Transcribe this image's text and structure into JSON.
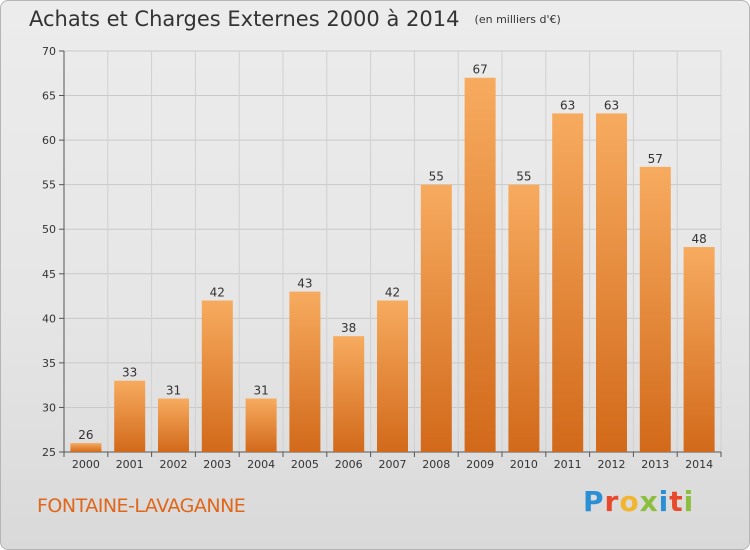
{
  "chart_data": {
    "type": "bar",
    "title": "Achats et Charges Externes 2000 à 2014",
    "subtitle": "(en milliers d'€)",
    "categories": [
      "2000",
      "2001",
      "2002",
      "2003",
      "2004",
      "2005",
      "2006",
      "2007",
      "2008",
      "2009",
      "2010",
      "2011",
      "2012",
      "2013",
      "2014"
    ],
    "values": [
      26,
      33,
      31,
      42,
      31,
      43,
      38,
      42,
      55,
      67,
      55,
      63,
      63,
      57,
      48
    ],
    "ylim": [
      25,
      70
    ],
    "yticks": [
      25,
      30,
      35,
      40,
      45,
      50,
      55,
      60,
      65,
      70
    ],
    "grid": true,
    "bar_color": "#f08a2e",
    "bar_color_light": "#f6a95c"
  },
  "commune": "FONTAINE-LAVAGANNE",
  "logo": {
    "text": "Proxiti",
    "colors": [
      "#2b8fd6",
      "#e8482c",
      "#f2b52f",
      "#8bbf3d",
      "#2b8fd6",
      "#e8482c",
      "#8bbf3d"
    ]
  }
}
